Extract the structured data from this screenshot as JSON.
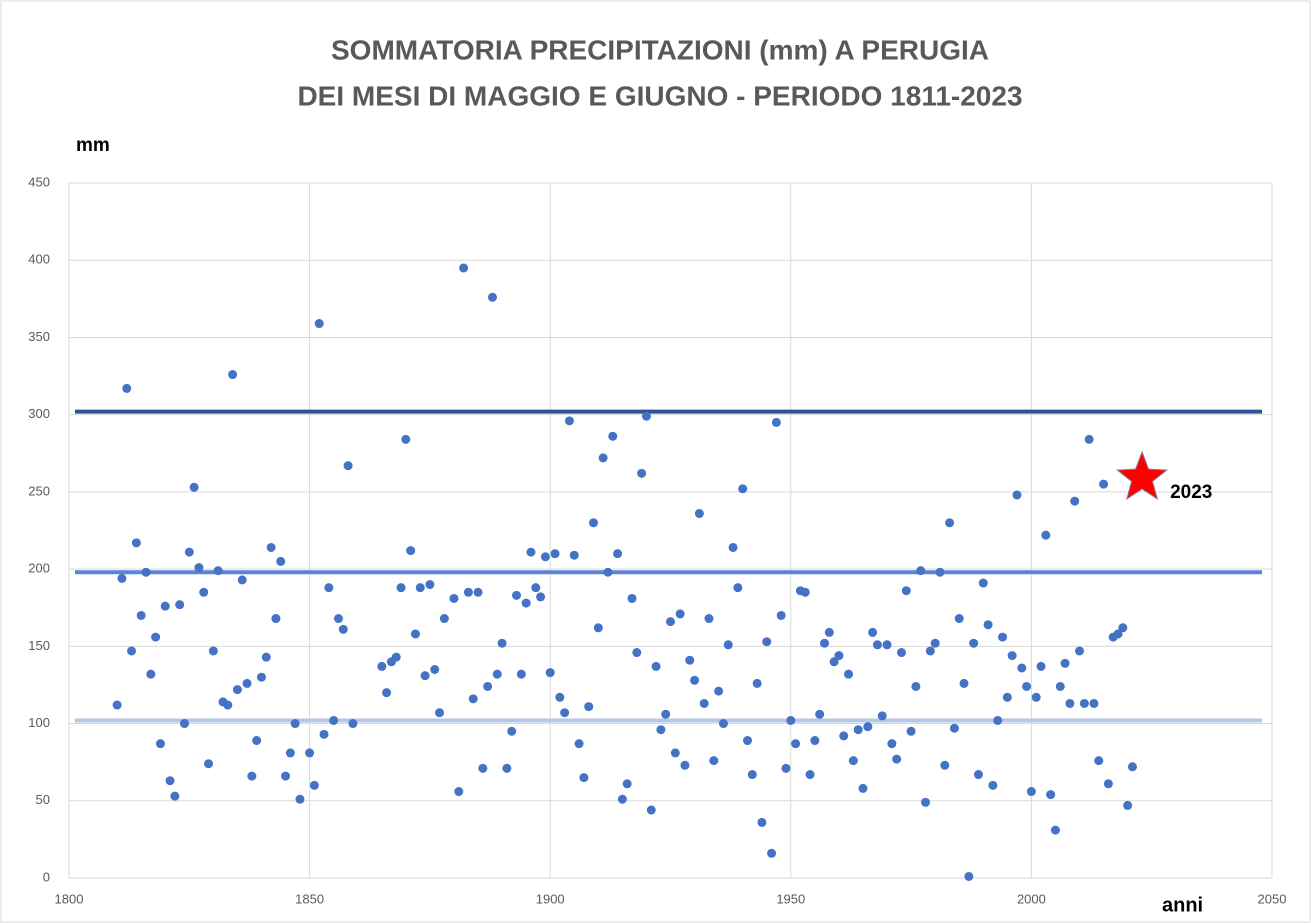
{
  "chart_data": {
    "type": "scatter",
    "title": [
      "SOMMATORIA PRECIPITAZIONI (mm)  A PERUGIA",
      "DEI MESI DI MAGGIO E GIUGNO - PERIODO 1811-2023"
    ],
    "y_label": "mm",
    "x_label": "anni",
    "xlim": [
      1800,
      2050
    ],
    "xticks": [
      1800,
      1850,
      1900,
      1950,
      2000,
      2050
    ],
    "ylim": [
      0,
      450
    ],
    "yticks": [
      0,
      50,
      100,
      150,
      200,
      250,
      300,
      350,
      400,
      450
    ],
    "grid": true,
    "color": "#4472c4",
    "x": [
      1810,
      1811,
      1812,
      1813,
      1814,
      1815,
      1816,
      1817,
      1818,
      1819,
      1820,
      1821,
      1822,
      1823,
      1824,
      1825,
      1826,
      1827,
      1828,
      1829,
      1830,
      1831,
      1832,
      1833,
      1834,
      1835,
      1836,
      1837,
      1838,
      1839,
      1840,
      1841,
      1842,
      1843,
      1844,
      1845,
      1846,
      1847,
      1848,
      1850,
      1851,
      1852,
      1853,
      1854,
      1855,
      1856,
      1857,
      1858,
      1859,
      1865,
      1866,
      1867,
      1868,
      1869,
      1870,
      1871,
      1872,
      1873,
      1874,
      1875,
      1876,
      1877,
      1878,
      1880,
      1881,
      1882,
      1883,
      1884,
      1885,
      1886,
      1887,
      1888,
      1889,
      1890,
      1891,
      1892,
      1893,
      1894,
      1895,
      1896,
      1897,
      1898,
      1899,
      1900,
      1901,
      1902,
      1903,
      1904,
      1905,
      1906,
      1907,
      1908,
      1909,
      1910,
      1911,
      1912,
      1913,
      1914,
      1915,
      1916,
      1917,
      1918,
      1919,
      1920,
      1921,
      1922,
      1923,
      1924,
      1925,
      1926,
      1927,
      1928,
      1929,
      1930,
      1931,
      1932,
      1933,
      1934,
      1935,
      1936,
      1937,
      1938,
      1939,
      1940,
      1941,
      1942,
      1943,
      1944,
      1945,
      1946,
      1947,
      1948,
      1949,
      1950,
      1951,
      1952,
      1953,
      1954,
      1955,
      1956,
      1957,
      1958,
      1959,
      1960,
      1961,
      1962,
      1963,
      1964,
      1965,
      1966,
      1967,
      1968,
      1969,
      1970,
      1971,
      1972,
      1973,
      1974,
      1975,
      1976,
      1977,
      1978,
      1979,
      1980,
      1981,
      1982,
      1983,
      1984,
      1985,
      1986,
      1987,
      1988,
      1989,
      1990,
      1991,
      1992,
      1993,
      1994,
      1995,
      1996,
      1997,
      1998,
      1999,
      2000,
      2001,
      2002,
      2003,
      2004,
      2005,
      2006,
      2007,
      2008,
      2009,
      2010,
      2011,
      2012,
      2013,
      2014,
      2015,
      2016,
      2017,
      2018,
      2019,
      2020,
      2021
    ],
    "y": [
      112,
      194,
      317,
      147,
      217,
      170,
      198,
      132,
      156,
      87,
      176,
      63,
      53,
      177,
      100,
      211,
      253,
      201,
      185,
      74,
      147,
      199,
      114,
      112,
      326,
      122,
      193,
      126,
      66,
      89,
      130,
      143,
      214,
      168,
      205,
      66,
      81,
      100,
      51,
      81,
      60,
      359,
      93,
      188,
      102,
      168,
      161,
      267,
      100,
      137,
      120,
      140,
      143,
      188,
      284,
      212,
      158,
      188,
      131,
      190,
      135,
      107,
      168,
      181,
      56,
      395,
      185,
      116,
      185,
      71,
      124,
      376,
      132,
      152,
      71,
      95,
      183,
      132,
      178,
      211,
      188,
      182,
      208,
      133,
      210,
      117,
      107,
      296,
      209,
      87,
      65,
      111,
      230,
      162,
      272,
      198,
      286,
      210,
      51,
      61,
      181,
      146,
      262,
      299,
      44,
      137,
      96,
      106,
      166,
      81,
      171,
      73,
      141,
      128,
      236,
      113,
      168,
      76,
      121,
      100,
      151,
      214,
      188,
      252,
      89,
      67,
      126,
      36,
      153,
      16,
      295,
      170,
      71,
      102,
      87,
      186,
      185,
      67,
      89,
      106,
      152,
      159,
      140,
      144,
      92,
      132,
      76,
      96,
      58,
      98,
      159,
      151,
      105,
      151,
      87,
      77,
      146,
      186,
      95,
      124,
      199,
      49,
      147,
      152,
      198,
      73,
      230,
      97,
      168,
      126,
      1,
      152,
      67,
      191,
      164,
      60,
      102,
      156,
      117,
      144,
      248,
      136,
      124,
      56,
      117,
      137,
      222,
      54,
      31,
      124,
      139,
      113,
      244,
      147,
      113,
      284,
      113,
      76,
      255,
      61,
      156,
      158,
      162,
      47,
      72
    ],
    "reference_lines": [
      {
        "value": 302,
        "color": "#2f5597"
      },
      {
        "value": 198,
        "color": "#5b84d6"
      },
      {
        "value": 102,
        "color": "#b4c7e7"
      }
    ],
    "highlight": {
      "x": 2023,
      "y": 259,
      "label": "2023",
      "color": "#ff0000"
    }
  }
}
